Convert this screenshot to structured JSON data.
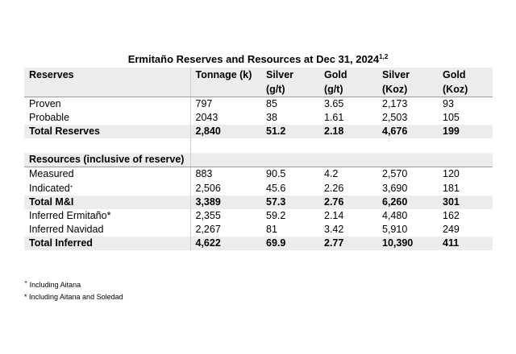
{
  "title": "Ermitaño Reserves and Resources at Dec 31, 2024",
  "title_sup": "1,2",
  "headers": {
    "label": "Reserves",
    "tonnage": "Tonnage (k)",
    "silver_g": [
      "Silver",
      "(g/t)"
    ],
    "gold_g": [
      "Gold",
      "(g/t)"
    ],
    "silver_koz": [
      "Silver",
      "(Koz)"
    ],
    "gold_koz": [
      "Gold",
      "(Koz)"
    ]
  },
  "reserves": [
    {
      "label": "Proven",
      "tonnage": "797",
      "silver_gt": "85",
      "gold_gt": "3.65",
      "silver_koz": "2,173",
      "gold_koz": "93"
    },
    {
      "label": "Probable",
      "tonnage": "2043",
      "silver_gt": "38",
      "gold_gt": "1.61",
      "silver_koz": "2,503",
      "gold_koz": "105"
    }
  ],
  "total_reserves": {
    "label": "Total Reserves",
    "tonnage": "2,840",
    "silver_gt": "51.2",
    "gold_gt": "2.18",
    "silver_koz": "4,676",
    "gold_koz": "199"
  },
  "resources_header": "Resources (inclusive of reserve)",
  "measured": {
    "label": "Measured",
    "tonnage": "883",
    "silver_gt": "90.5",
    "gold_gt": "4.2",
    "silver_koz": "2,570",
    "gold_koz": "120"
  },
  "indicated": {
    "label": "Indicated",
    "label_sup": "+",
    "tonnage": "2,506",
    "silver_gt": "45.6",
    "gold_gt": "2.26",
    "silver_koz": "3,690",
    "gold_koz": "181"
  },
  "total_mi": {
    "label": "Total M&I",
    "tonnage": "3,389",
    "silver_gt": "57.3",
    "gold_gt": "2.76",
    "silver_koz": "6,260",
    "gold_koz": "301"
  },
  "inferred_ermitano": {
    "label": "Inferred Ermitaño*",
    "tonnage": "2,355",
    "silver_gt": "59.2",
    "gold_gt": "2.14",
    "silver_koz": "4,480",
    "gold_koz": "162"
  },
  "inferred_navidad": {
    "label": "Inferred Navidad",
    "tonnage": "2,267",
    "silver_gt": "81",
    "gold_gt": "3.42",
    "silver_koz": "5,910",
    "gold_koz": "249"
  },
  "total_inferred": {
    "label": "Total Inferred",
    "tonnage": "4,622",
    "silver_gt": "69.9",
    "gold_gt": "2.77",
    "silver_koz": "10,390",
    "gold_koz": "411"
  },
  "notes": {
    "note1_mark": "+",
    "note1_text": "Including Aitana",
    "note2_text": "* Including Aitana and Soledad"
  }
}
